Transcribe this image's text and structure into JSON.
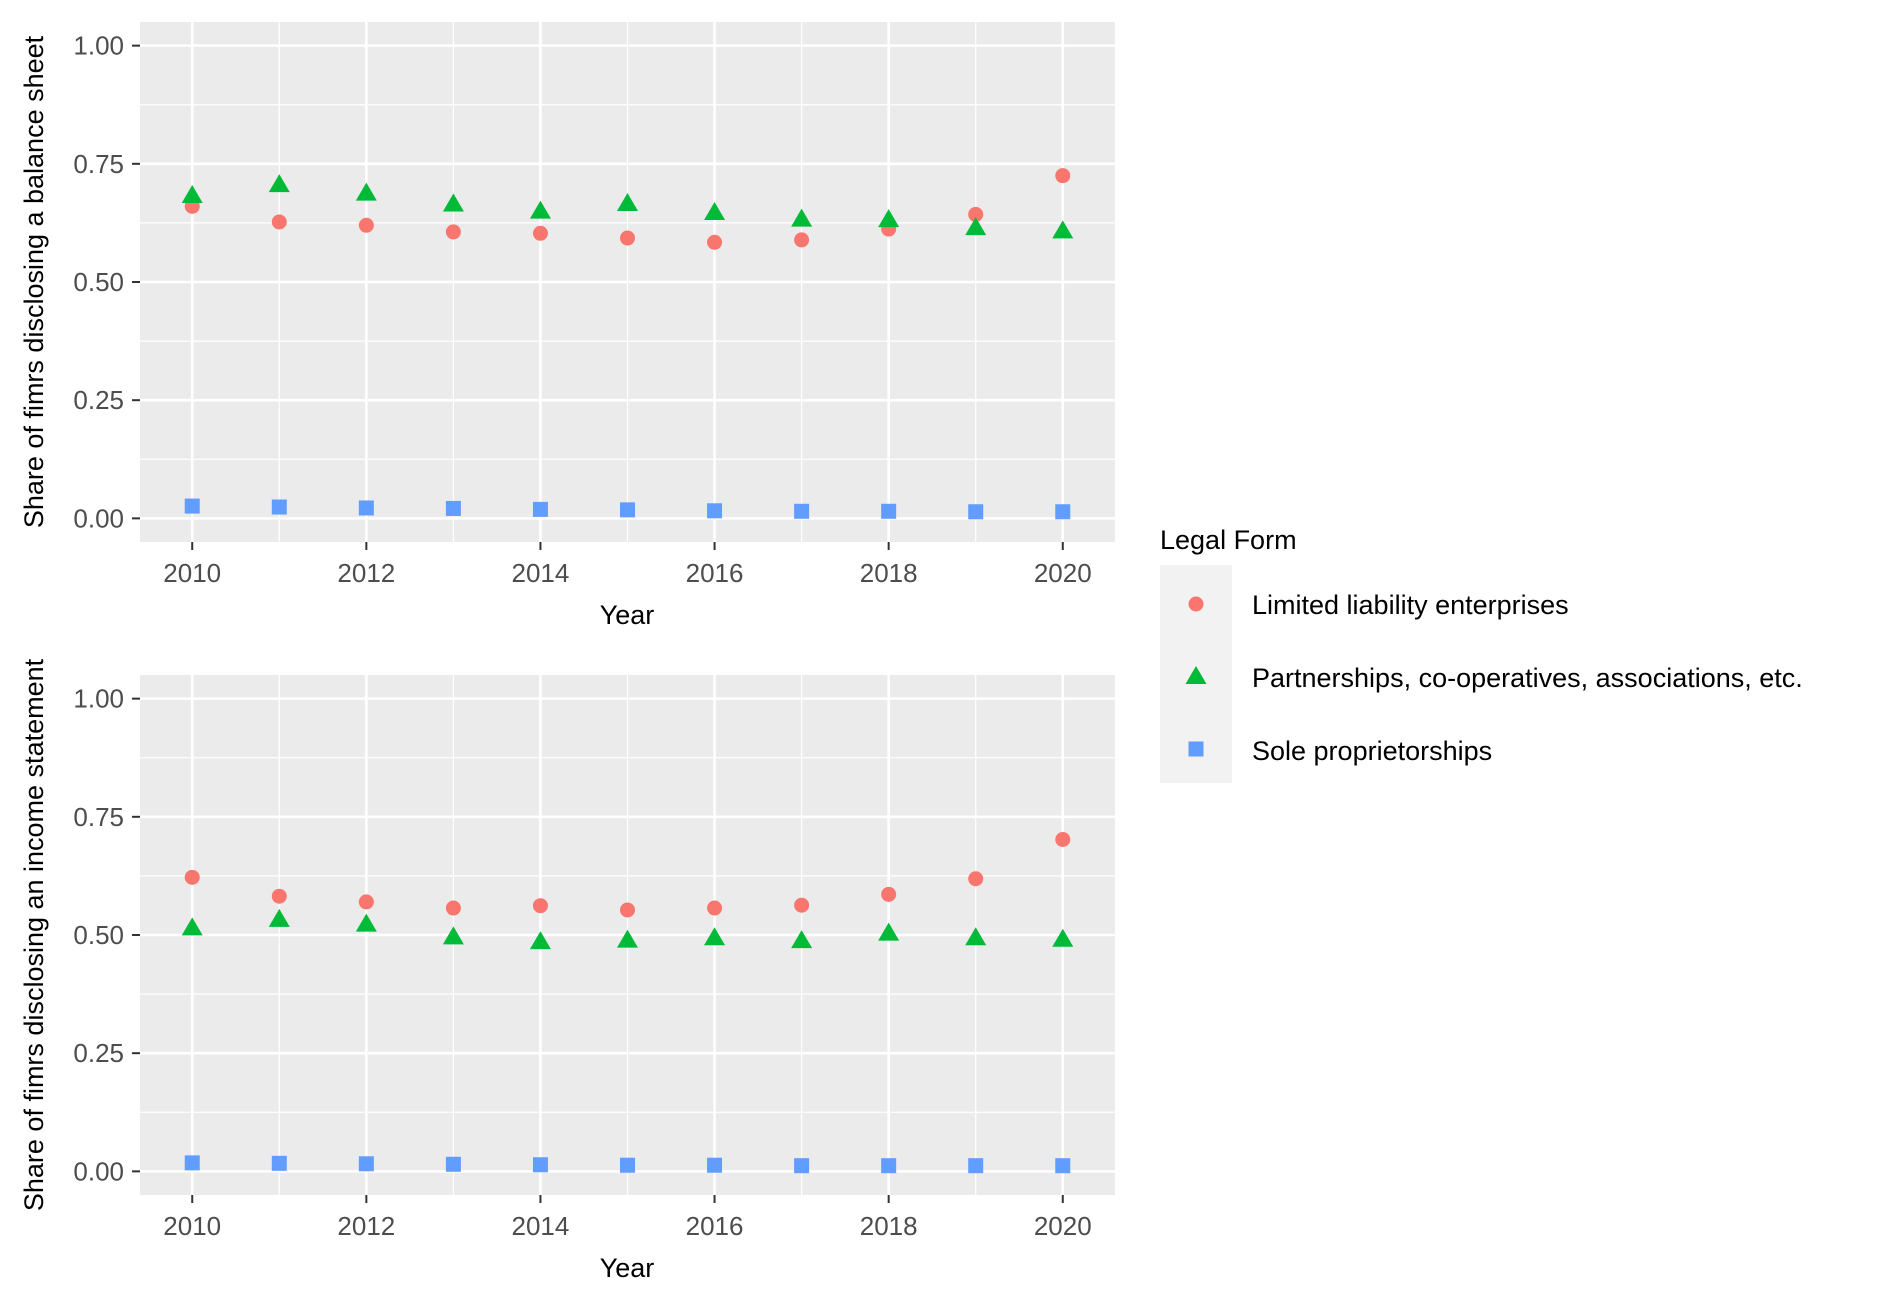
{
  "chart_data": [
    {
      "type": "scatter",
      "ylabel": "Share of fimrs disclosing a balance sheet",
      "xlabel": "Year",
      "x": [
        2010,
        2011,
        2012,
        2013,
        2014,
        2015,
        2016,
        2017,
        2018,
        2019,
        2020
      ],
      "x_ticks": [
        "2010",
        "2012",
        "2014",
        "2016",
        "2018",
        "2020"
      ],
      "y_ticks": [
        "0.00",
        "0.25",
        "0.50",
        "0.75",
        "1.00"
      ],
      "ylim": [
        -0.05,
        1.05
      ],
      "xlim": [
        2009.4,
        2020.6
      ],
      "grid": true,
      "series": [
        {
          "name": "Limited liability enterprises",
          "values": [
            0.66,
            0.627,
            0.62,
            0.606,
            0.603,
            0.593,
            0.584,
            0.589,
            0.612,
            0.643,
            0.725
          ]
        },
        {
          "name": "Partnerships, co-operatives, associations, etc.",
          "values": [
            0.682,
            0.705,
            0.687,
            0.664,
            0.649,
            0.665,
            0.646,
            0.632,
            0.631,
            0.614,
            0.607
          ]
        },
        {
          "name": "Sole proprietorships",
          "values": [
            0.026,
            0.024,
            0.022,
            0.021,
            0.019,
            0.018,
            0.016,
            0.015,
            0.015,
            0.014,
            0.014
          ]
        }
      ]
    },
    {
      "type": "scatter",
      "ylabel": "Share of fimrs disclosing an income statement",
      "xlabel": "Year",
      "x": [
        2010,
        2011,
        2012,
        2013,
        2014,
        2015,
        2016,
        2017,
        2018,
        2019,
        2020
      ],
      "x_ticks": [
        "2010",
        "2012",
        "2014",
        "2016",
        "2018",
        "2020"
      ],
      "y_ticks": [
        "0.00",
        "0.25",
        "0.50",
        "0.75",
        "1.00"
      ],
      "ylim": [
        -0.05,
        1.05
      ],
      "xlim": [
        2009.4,
        2020.6
      ],
      "grid": true,
      "series": [
        {
          "name": "Limited liability enterprises",
          "values": [
            0.622,
            0.582,
            0.57,
            0.557,
            0.562,
            0.553,
            0.557,
            0.563,
            0.586,
            0.619,
            0.702
          ]
        },
        {
          "name": "Partnerships, co-operatives, associations, etc.",
          "values": [
            0.514,
            0.532,
            0.522,
            0.495,
            0.485,
            0.488,
            0.493,
            0.487,
            0.503,
            0.493,
            0.49
          ]
        },
        {
          "name": "Sole proprietorships",
          "values": [
            0.018,
            0.017,
            0.016,
            0.015,
            0.014,
            0.013,
            0.013,
            0.012,
            0.012,
            0.012,
            0.012
          ]
        }
      ]
    }
  ],
  "legend": {
    "title": "Legal Form",
    "placement": "right",
    "items": [
      {
        "label": "Limited liability enterprises",
        "shape": "circle",
        "color": "#F8766D"
      },
      {
        "label": "Partnerships, co-operatives, associations, etc.",
        "shape": "triangle",
        "color": "#00BA38"
      },
      {
        "label": "Sole proprietorships",
        "shape": "square",
        "color": "#619CFF"
      }
    ]
  },
  "colors": {
    "panel_background": "#EBEBEB",
    "grid": "#FFFFFF",
    "legend_key_background": "#F2F2F2",
    "tick_text": "#4D4D4D",
    "axis_ticks": "#333333"
  }
}
